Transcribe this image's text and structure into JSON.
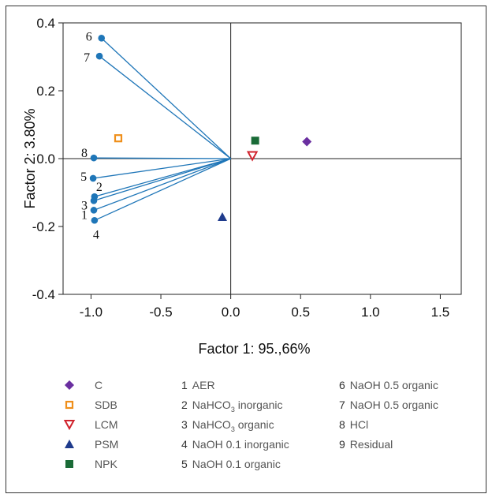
{
  "chart_data": {
    "type": "scatter",
    "title": "",
    "xlabel": "Factor 1: 95.,66%",
    "ylabel": "Factor 2: 3.80%",
    "xlim": [
      -1.2,
      1.65
    ],
    "ylim": [
      -0.4,
      0.4
    ],
    "xticks": [
      "-1.0",
      "-0.5",
      "0.0",
      "0.5",
      "1.0",
      "1.5"
    ],
    "xtick_values": [
      -1.0,
      -0.5,
      0.0,
      0.5,
      1.0,
      1.5
    ],
    "yticks": [
      "0.4",
      "0.2",
      "0.0",
      "-0.2",
      "-0.4"
    ],
    "ytick_values": [
      0.4,
      0.2,
      0.0,
      -0.2,
      -0.4
    ],
    "grid": false,
    "reference_lines": {
      "x": 0.0,
      "y": 0.0
    },
    "variables": [
      {
        "id": "1",
        "name": "AER",
        "x": -0.98,
        "y": -0.152
      },
      {
        "id": "2",
        "name": "NaHCO3 inorganic",
        "x": -0.975,
        "y": -0.112
      },
      {
        "id": "3",
        "name": "NaHCO3 organic",
        "x": -0.98,
        "y": -0.124
      },
      {
        "id": "4",
        "name": "NaOH 0.1 inorganic",
        "x": -0.975,
        "y": -0.182
      },
      {
        "id": "5",
        "name": "NaOH 0.1 organic",
        "x": -0.985,
        "y": -0.058
      },
      {
        "id": "6",
        "name": "NaOH 0.5 organic",
        "x": -0.925,
        "y": 0.355
      },
      {
        "id": "7",
        "name": "NaOH 0.5 organic",
        "x": -0.94,
        "y": 0.302
      },
      {
        "id": "8",
        "name": "HCl",
        "x": -0.98,
        "y": 0.002
      },
      {
        "id": "9",
        "name": "Residual"
      }
    ],
    "cases": [
      {
        "name": "C",
        "x": 0.545,
        "y": 0.05,
        "marker": "diamond",
        "color": "#6a2fa0"
      },
      {
        "name": "SDB",
        "x": -0.805,
        "y": 0.06,
        "marker": "square-open",
        "color": "#ef8f1b"
      },
      {
        "name": "LCM",
        "x": 0.155,
        "y": 0.008,
        "marker": "triangle-down-open",
        "color": "#d0222c"
      },
      {
        "name": "PSM",
        "x": -0.06,
        "y": -0.172,
        "marker": "triangle-up",
        "color": "#1f3b8c"
      },
      {
        "name": "NPK",
        "x": 0.175,
        "y": 0.053,
        "marker": "square",
        "color": "#1a6b37"
      }
    ],
    "variable_color": "#1f76b8"
  },
  "legend": {
    "cases": [
      {
        "label": "C"
      },
      {
        "label": "SDB"
      },
      {
        "label": "LCM"
      },
      {
        "label": "PSM"
      },
      {
        "label": "NPK"
      }
    ],
    "variables_col1": [
      {
        "num": "1",
        "text": "AER",
        "sub": "",
        "tail": ""
      },
      {
        "num": "2",
        "text": "NaHCO",
        "sub": "3",
        "tail": " inorganic"
      },
      {
        "num": "3",
        "text": "NaHCO",
        "sub": "3",
        "tail": " organic"
      },
      {
        "num": "4",
        "text": "NaOH 0.1 inorganic",
        "sub": "",
        "tail": ""
      },
      {
        "num": "5",
        "text": "NaOH 0.1 organic",
        "sub": "",
        "tail": ""
      }
    ],
    "variables_col2": [
      {
        "num": "6",
        "text": "NaOH 0.5 organic",
        "sub": "",
        "tail": ""
      },
      {
        "num": "7",
        "text": "NaOH 0.5 organic",
        "sub": "",
        "tail": ""
      },
      {
        "num": "8",
        "text": "HCl",
        "sub": "",
        "tail": ""
      },
      {
        "num": "9",
        "text": "Residual",
        "sub": "",
        "tail": ""
      }
    ]
  }
}
